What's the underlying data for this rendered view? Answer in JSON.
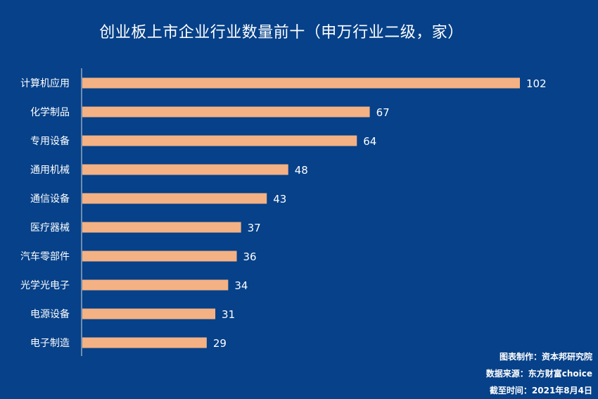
{
  "chart_data": {
    "type": "bar",
    "orientation": "horizontal",
    "title": "创业板上市企业行业数量前十（申万行业二级，家）",
    "categories": [
      "计算机应用",
      "化学制品",
      "专用设备",
      "通用机械",
      "通信设备",
      "医疗器械",
      "汽车零部件",
      "光学光电子",
      "电源设备",
      "电子制造"
    ],
    "values": [
      102,
      67,
      64,
      48,
      43,
      37,
      36,
      34,
      31,
      29
    ],
    "xlim": [
      0,
      102
    ],
    "grid": false,
    "bar_color": "#F4B183",
    "background_color": "#064189"
  },
  "notes": {
    "maker_label": "图表制作：",
    "maker": "资本邦研究院",
    "source_label": "数据来源：",
    "source": "东方财富choice",
    "date_label": "截至时间：",
    "date": "2021年8月4日"
  }
}
